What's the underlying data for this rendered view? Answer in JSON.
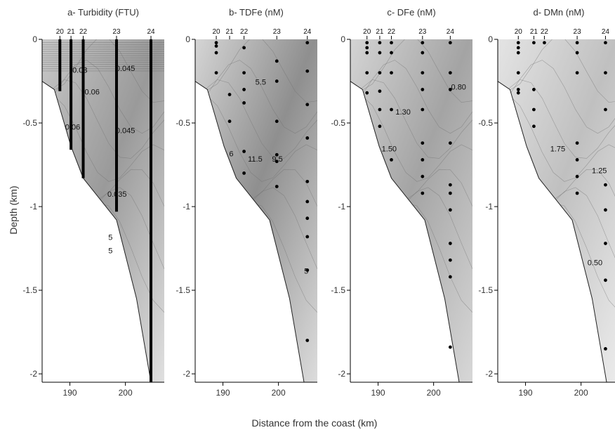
{
  "figure": {
    "xlabel": "Distance from the coast (km)",
    "ylabel": "Depth (km)"
  },
  "chart_data": [
    {
      "type": "heatmap",
      "title": "a- Turbidity (FTU)",
      "xlim": [
        185,
        207
      ],
      "ylim": [
        -2.05,
        0
      ],
      "x_ticks": [
        190,
        200
      ],
      "y_ticks": [
        0,
        -0.5,
        -1,
        -1.5,
        -2
      ],
      "stations": [
        {
          "id": "20",
          "x": 188.2,
          "profile_bottom": -0.31
        },
        {
          "id": "21",
          "x": 190.2,
          "profile_bottom": -0.66
        },
        {
          "id": "22",
          "x": 192.4,
          "profile_bottom": -0.83
        },
        {
          "id": "23",
          "x": 198.4,
          "profile_bottom": -1.03
        },
        {
          "id": "24",
          "x": 204.6,
          "profile_bottom": -2.05
        }
      ],
      "contour_labels": [
        {
          "text": "0.03",
          "x": 191.8,
          "y": -0.2
        },
        {
          "text": "0.045",
          "x": 200.0,
          "y": -0.19
        },
        {
          "text": "0.06",
          "x": 194.0,
          "y": -0.33
        },
        {
          "text": "0.06",
          "x": 190.5,
          "y": -0.54
        },
        {
          "text": "0.045",
          "x": 200.0,
          "y": -0.56
        },
        {
          "text": "0.035",
          "x": 198.5,
          "y": -0.94
        },
        {
          "text": "5",
          "x": 197.3,
          "y": -1.2
        },
        {
          "text": "5",
          "x": 197.3,
          "y": -1.28
        }
      ]
    },
    {
      "type": "heatmap",
      "title": "b- TDFe (nM)",
      "xlim": [
        185,
        207
      ],
      "ylim": [
        -2.05,
        0
      ],
      "x_ticks": [
        190,
        200
      ],
      "y_ticks": [
        0,
        -0.5,
        -1,
        -1.5,
        -2
      ],
      "stations": [
        {
          "id": "20",
          "x": 188.8,
          "samples": [
            -0.02,
            -0.04,
            -0.08,
            -0.2
          ]
        },
        {
          "id": "21",
          "x": 191.2,
          "samples": [
            -0.33,
            -0.49
          ]
        },
        {
          "id": "22",
          "x": 193.8,
          "samples": [
            -0.05,
            -0.2,
            -0.3,
            -0.38,
            -0.67,
            -0.8
          ]
        },
        {
          "id": "23",
          "x": 199.7,
          "samples": [
            -0.13,
            -0.25,
            -0.49,
            -0.69,
            -0.73,
            -0.88
          ]
        },
        {
          "id": "24",
          "x": 205.2,
          "samples": [
            -0.02,
            -0.19,
            -0.39,
            -0.59,
            -0.85,
            -0.97,
            -1.07,
            -1.18,
            -1.38,
            -1.8
          ]
        }
      ],
      "contour_labels": [
        {
          "text": "5.5",
          "x": 196.8,
          "y": -0.27
        },
        {
          "text": "6",
          "x": 191.5,
          "y": -0.7
        },
        {
          "text": "11.5",
          "x": 195.8,
          "y": -0.73
        },
        {
          "text": "9.5",
          "x": 199.8,
          "y": -0.73
        },
        {
          "text": "5",
          "x": 205.0,
          "y": -1.4
        }
      ]
    },
    {
      "type": "heatmap",
      "title": "c- DFe (nM)",
      "xlim": [
        185,
        207
      ],
      "ylim": [
        -2.05,
        0
      ],
      "x_ticks": [
        190,
        200
      ],
      "y_ticks": [
        0,
        -0.5,
        -1,
        -1.5,
        -2
      ],
      "stations": [
        {
          "id": "20",
          "x": 188.0,
          "samples": [
            -0.02,
            -0.05,
            -0.08,
            -0.2,
            -0.32
          ]
        },
        {
          "id": "21",
          "x": 190.3,
          "samples": [
            -0.02,
            -0.08,
            -0.2,
            -0.31,
            -0.42,
            -0.52
          ]
        },
        {
          "id": "22",
          "x": 192.4,
          "samples": [
            -0.02,
            -0.08,
            -0.2,
            -0.42,
            -0.72
          ]
        },
        {
          "id": "23",
          "x": 198.0,
          "samples": [
            -0.02,
            -0.08,
            -0.2,
            -0.3,
            -0.42,
            -0.62,
            -0.72,
            -0.82,
            -0.92
          ]
        },
        {
          "id": "24",
          "x": 203.0,
          "samples": [
            -0.02,
            -0.2,
            -0.3,
            -0.62,
            -0.87,
            -0.92,
            -1.02,
            -1.22,
            -1.32,
            -1.42,
            -1.84
          ]
        }
      ],
      "contour_labels": [
        {
          "text": "0.80",
          "x": 204.5,
          "y": -0.3
        },
        {
          "text": "1.30",
          "x": 194.5,
          "y": -0.45
        },
        {
          "text": "1.50",
          "x": 192.0,
          "y": -0.67
        }
      ]
    },
    {
      "type": "heatmap",
      "title": "d- DMn (nM)",
      "xlim": [
        185,
        207
      ],
      "ylim": [
        -2.05,
        0
      ],
      "x_ticks": [
        190,
        200
      ],
      "y_ticks": [
        0,
        -0.5,
        -1,
        -1.5,
        -2
      ],
      "stations": [
        {
          "id": "20",
          "x": 188.7,
          "samples": [
            -0.02,
            -0.05,
            -0.08,
            -0.2,
            -0.3,
            -0.32
          ]
        },
        {
          "id": "21",
          "x": 191.5,
          "samples": [
            -0.02,
            -0.3,
            -0.42,
            -0.52
          ]
        },
        {
          "id": "22",
          "x": 193.4,
          "samples": [
            -0.02
          ]
        },
        {
          "id": "23",
          "x": 199.3,
          "samples": [
            -0.02,
            -0.08,
            -0.2,
            -0.62,
            -0.72,
            -0.82,
            -0.92
          ]
        },
        {
          "id": "24",
          "x": 204.4,
          "samples": [
            -0.02,
            -0.2,
            -0.42,
            -0.87,
            -1.02,
            -1.22,
            -1.44,
            -1.85
          ]
        }
      ],
      "contour_labels": [
        {
          "text": "1.75",
          "x": 195.8,
          "y": -0.67
        },
        {
          "text": "1.25",
          "x": 203.3,
          "y": -0.8
        },
        {
          "text": "0.50",
          "x": 202.5,
          "y": -1.35
        }
      ]
    }
  ]
}
